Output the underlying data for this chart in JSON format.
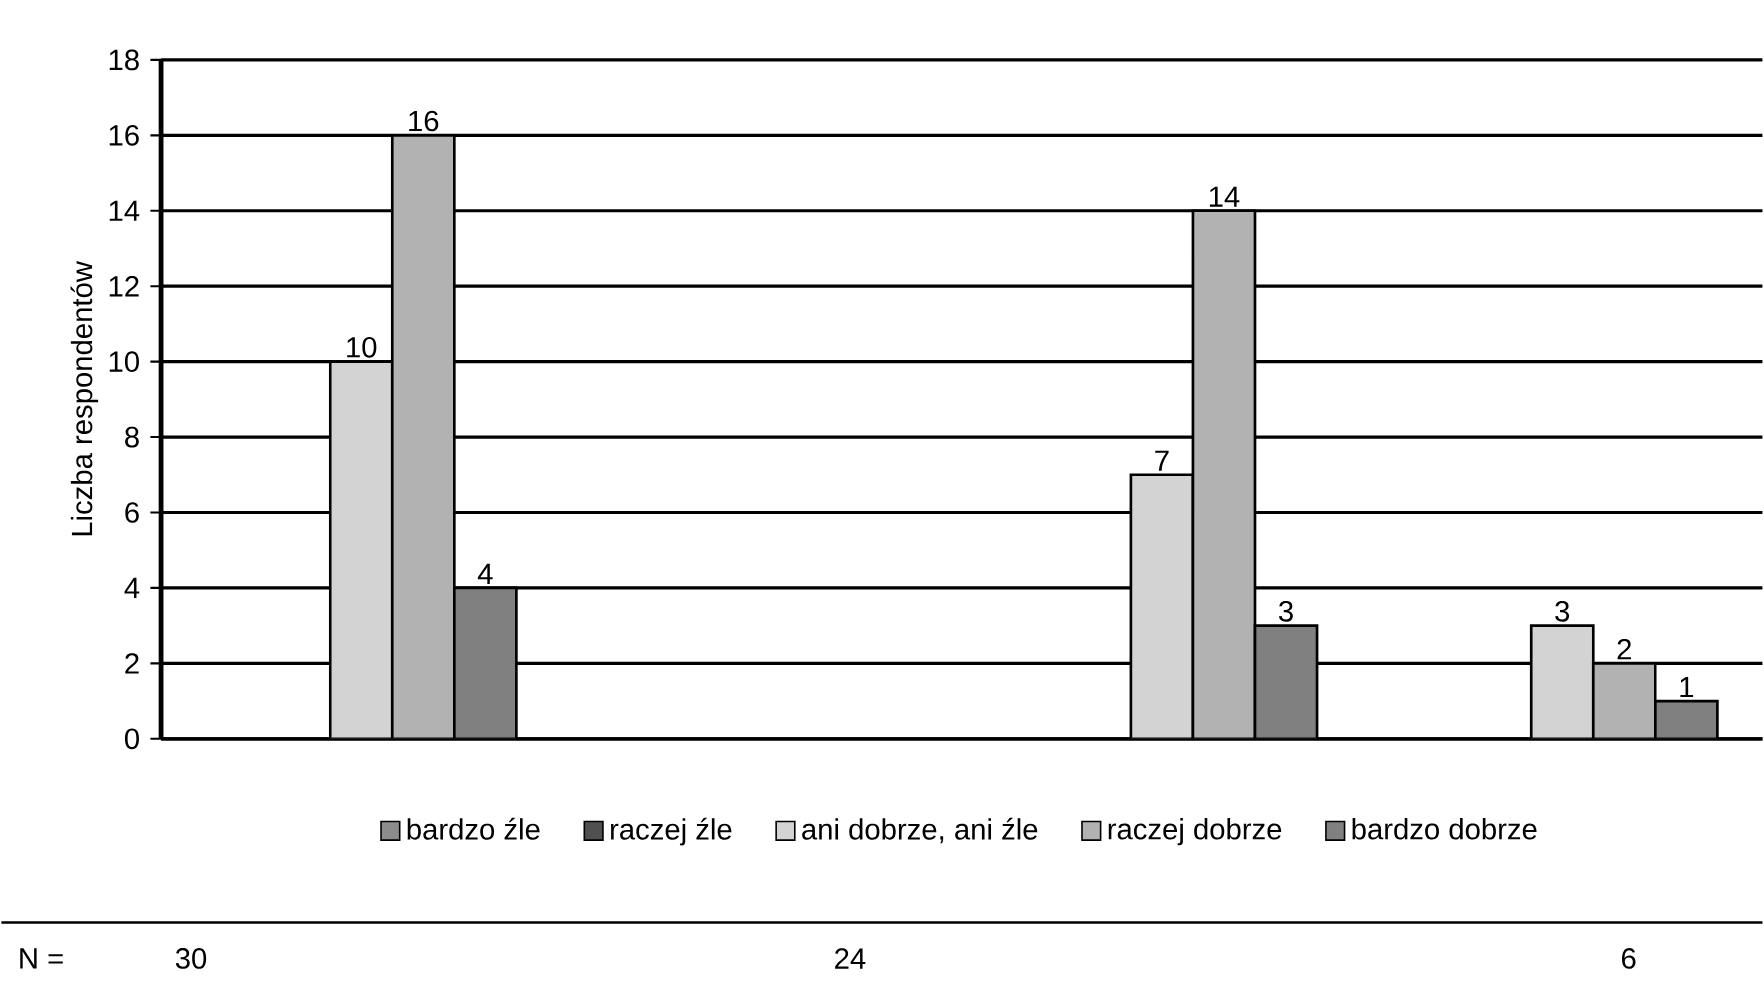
{
  "chart_data": {
    "type": "bar",
    "ylabel": "Liczba respondentów",
    "categories": [
      null,
      null,
      null,
      null
    ],
    "series": [
      {
        "name": "bardzo źle",
        "color": "#8c8c8c",
        "values": [
          null,
          null,
          null,
          null
        ]
      },
      {
        "name": "raczej źle",
        "color": "#505050",
        "values": [
          null,
          null,
          null,
          null
        ]
      },
      {
        "name": "ani dobrze, ani źle",
        "color": "#d3d3d3",
        "values": [
          10,
          null,
          7,
          3
        ]
      },
      {
        "name": "raczej dobrze",
        "color": "#b2b2b2",
        "values": [
          16,
          null,
          14,
          2
        ]
      },
      {
        "name": "bardzo dobrze",
        "color": "#808080",
        "values": [
          4,
          null,
          3,
          1
        ]
      }
    ],
    "ylim": [
      0,
      18
    ],
    "yticks": [
      0,
      2,
      4,
      6,
      8,
      10,
      12,
      14,
      16,
      18
    ],
    "grid": "y",
    "legend": "bottom",
    "data_labels": true,
    "annotations": [
      "N =",
      "30",
      "24",
      "6"
    ]
  }
}
